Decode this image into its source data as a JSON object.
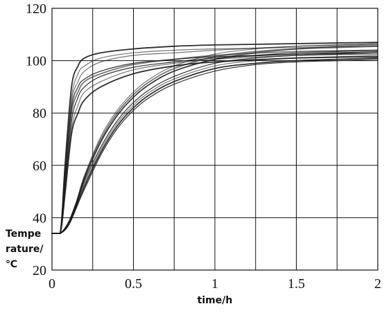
{
  "chart_data": {
    "type": "line",
    "xlabel": "time/h",
    "ylabel": [
      "Tempe",
      "rature/",
      "℃"
    ],
    "xlim": [
      0,
      2
    ],
    "ylim": [
      20,
      120
    ],
    "xticks": [
      0,
      0.5,
      1,
      1.5,
      2
    ],
    "xtick_labels": [
      "0",
      "0.5",
      "1",
      "1.5",
      "2"
    ],
    "yticks": [
      20,
      40,
      60,
      80,
      100,
      120
    ],
    "ytick_labels": [
      "20",
      "40",
      "60",
      "80",
      "100",
      "120"
    ],
    "x_grid_step": 0.25,
    "grid": true,
    "legend": "none",
    "line_color": "#1a1a1a",
    "series": [
      {
        "x": [
          0,
          0.05,
          0.08,
          0.12,
          0.16,
          0.2,
          0.3,
          0.5,
          0.75,
          1,
          1.5,
          2
        ],
        "y": [
          34,
          34,
          60,
          90,
          98,
          101,
          103,
          104.5,
          105.5,
          106,
          106.5,
          107
        ]
      },
      {
        "x": [
          0,
          0.05,
          0.08,
          0.12,
          0.16,
          0.2,
          0.3,
          0.5,
          0.75,
          1,
          1.5,
          2
        ],
        "y": [
          34,
          34,
          58,
          86,
          95,
          98,
          101,
          103,
          104,
          104.5,
          105,
          105.5
        ]
      },
      {
        "x": [
          0,
          0.05,
          0.08,
          0.12,
          0.16,
          0.2,
          0.3,
          0.5,
          0.75,
          1,
          1.5,
          2
        ],
        "y": [
          34,
          34,
          56,
          82,
          90,
          93,
          96,
          99,
          100.5,
          101.5,
          102.5,
          103
        ]
      },
      {
        "x": [
          0,
          0.05,
          0.08,
          0.12,
          0.16,
          0.2,
          0.3,
          0.5,
          0.75,
          1,
          1.5,
          2
        ],
        "y": [
          34,
          34,
          54,
          80,
          88,
          92,
          95,
          98.5,
          100.5,
          102,
          103.5,
          104
        ]
      },
      {
        "x": [
          0,
          0.05,
          0.08,
          0.12,
          0.16,
          0.2,
          0.3,
          0.5,
          0.75,
          1,
          1.5,
          2
        ],
        "y": [
          34,
          34,
          52,
          77,
          86,
          90,
          94,
          97.5,
          99.5,
          101,
          102.5,
          103.5
        ]
      },
      {
        "x": [
          0,
          0.05,
          0.08,
          0.12,
          0.16,
          0.2,
          0.3,
          0.5,
          0.75,
          1,
          1.5,
          2
        ],
        "y": [
          34,
          34,
          50,
          74,
          83,
          88,
          92,
          96.5,
          99,
          100.5,
          102,
          102.5
        ]
      },
      {
        "x": [
          0,
          0.05,
          0.08,
          0.12,
          0.16,
          0.2,
          0.3,
          0.5,
          0.75,
          1,
          1.5,
          2
        ],
        "y": [
          34,
          34,
          49,
          72,
          80,
          85,
          90,
          95,
          98,
          99.5,
          101,
          101.5
        ]
      },
      {
        "x": [
          0,
          0.05,
          0.08,
          0.12,
          0.16,
          0.2,
          0.3,
          0.5,
          0.75,
          1,
          1.5,
          2
        ],
        "y": [
          34,
          34,
          55,
          84,
          92,
          96,
          99.5,
          102,
          103,
          104,
          105.5,
          106.5
        ]
      },
      {
        "x": [
          0,
          0.05,
          0.1,
          0.15,
          0.2,
          0.3,
          0.4,
          0.5,
          0.6,
          0.75,
          1,
          1.25,
          1.5,
          1.75,
          2
        ],
        "y": [
          34,
          34,
          38,
          46,
          55,
          69,
          79,
          86,
          91,
          96,
          100.5,
          102,
          103,
          103.5,
          104
        ]
      },
      {
        "x": [
          0,
          0.05,
          0.1,
          0.15,
          0.2,
          0.3,
          0.4,
          0.5,
          0.6,
          0.75,
          1,
          1.25,
          1.5,
          1.75,
          2
        ],
        "y": [
          34,
          34,
          38,
          46,
          56,
          70,
          80,
          87,
          92,
          97,
          101.5,
          103.5,
          104.5,
          105,
          105.5
        ]
      },
      {
        "x": [
          0,
          0.05,
          0.1,
          0.15,
          0.2,
          0.3,
          0.4,
          0.5,
          0.6,
          0.75,
          1,
          1.25,
          1.5,
          1.75,
          2
        ],
        "y": [
          34,
          34,
          38,
          45,
          54,
          67,
          77,
          84,
          89,
          94,
          99,
          101,
          102,
          102.5,
          103
        ]
      },
      {
        "x": [
          0,
          0.05,
          0.1,
          0.15,
          0.2,
          0.3,
          0.4,
          0.5,
          0.6,
          0.75,
          1,
          1.25,
          1.5,
          1.75,
          2
        ],
        "y": [
          34,
          34,
          37,
          45,
          53,
          66,
          76,
          83,
          88,
          93,
          98,
          100,
          101,
          101.5,
          102
        ]
      },
      {
        "x": [
          0,
          0.05,
          0.1,
          0.15,
          0.2,
          0.3,
          0.4,
          0.5,
          0.6,
          0.75,
          1,
          1.25,
          1.5,
          1.75,
          2
        ],
        "y": [
          34,
          34,
          37,
          44,
          52,
          65,
          75,
          82,
          87,
          92,
          97,
          99,
          100,
          100.5,
          101
        ]
      },
      {
        "x": [
          0,
          0.05,
          0.1,
          0.15,
          0.2,
          0.3,
          0.4,
          0.5,
          0.6,
          0.75,
          1,
          1.25,
          1.5,
          1.75,
          2
        ],
        "y": [
          34,
          34,
          38,
          46,
          56,
          71,
          81,
          88,
          93,
          98,
          102.5,
          104.5,
          105.5,
          106,
          106.5
        ]
      },
      {
        "x": [
          0,
          0.05,
          0.1,
          0.15,
          0.2,
          0.3,
          0.4,
          0.5,
          0.6,
          0.75,
          1,
          1.25,
          1.5,
          1.75,
          2
        ],
        "y": [
          34,
          34,
          37,
          44,
          51,
          64,
          74,
          81,
          86,
          91,
          96,
          98.5,
          99.5,
          100,
          100.5
        ]
      },
      {
        "x": [
          0,
          0.05,
          0.1,
          0.15,
          0.2,
          0.3,
          0.4,
          0.5,
          0.6,
          0.75,
          1,
          1.25,
          1.5,
          1.75,
          2
        ],
        "y": [
          34,
          34,
          38,
          45,
          55,
          69,
          79,
          86,
          91,
          96,
          100.5,
          103,
          104.5,
          105.5,
          106
        ]
      }
    ]
  }
}
